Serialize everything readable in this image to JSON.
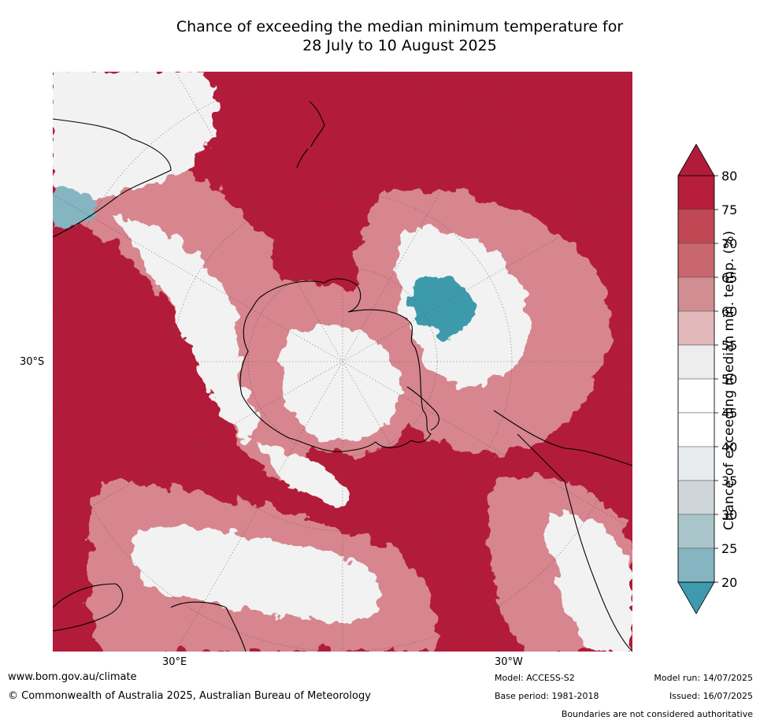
{
  "title_line1": "Chance of exceeding the median minimum temperature for",
  "title_line2": "28 July to 10 August 2025",
  "axes": {
    "lat_label": "30°S",
    "lon_east_label": "30°E",
    "lon_west_label": "30°W"
  },
  "colorbar": {
    "label": "Chance of exceeding median min. temp. (%)",
    "ticks": [
      "80",
      "75",
      "70",
      "65",
      "60",
      "55",
      "50",
      "45",
      "40",
      "35",
      "30",
      "25",
      "20"
    ],
    "colors": [
      "#b61d3a",
      "#c04753",
      "#c9676e",
      "#d28d92",
      "#e2b8bb",
      "#ededed",
      "#ffffff",
      "#ffffff",
      "#e8ecee",
      "#cfd6d9",
      "#a9c5ca",
      "#84b5c0",
      "#5fa6b4"
    ],
    "over_color": "#b21b39",
    "under_color": "#3e9aad"
  },
  "map_colors": {
    "high": "#b21b39",
    "mid_high": "#d7858e",
    "neutral": "#f2f2f2",
    "low": "#3e9aad"
  },
  "footer": {
    "url": "www.bom.gov.au/climate",
    "copyright": "© Commonwealth of Australia 2025, Australian Bureau of Meteorology",
    "model": "Model: ACCESS-S2",
    "base_period": "Base period: 1981-2018",
    "model_run": "Model run: 14/07/2025",
    "issued": "Issued: 16/07/2025",
    "disclaimer": "Boundaries are not considered authoritative"
  }
}
